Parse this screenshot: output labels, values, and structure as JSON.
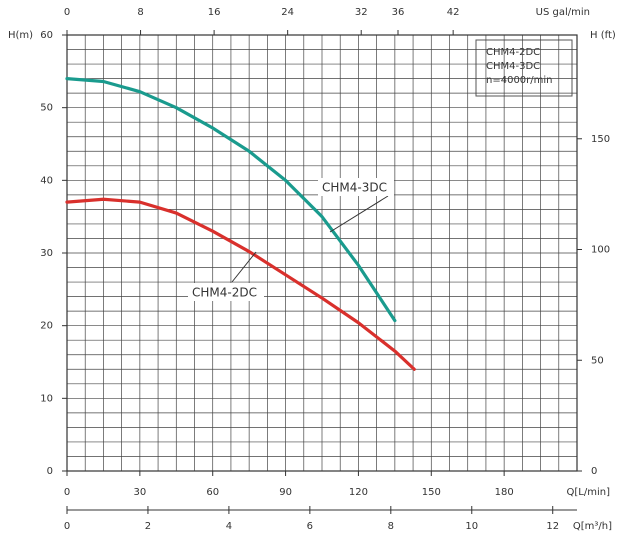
{
  "chart_data": {
    "type": "line",
    "y_label": "H(m)",
    "y2_label": "H (ft)",
    "x_label": "Q[L/min]",
    "x2_label": "US  gal/min",
    "x3_label": "Q[m³/h]",
    "annotations": [
      "CHM4-2DC",
      "CHM4-3DC",
      "n=4000r/min"
    ],
    "xlim": [
      0,
      210
    ],
    "xticks": [
      0,
      30,
      60,
      90,
      120,
      150,
      180
    ],
    "x2lim": [
      0,
      55.47
    ],
    "x2ticks": [
      0,
      8,
      16,
      24,
      32,
      36,
      42
    ],
    "x3lim": [
      0,
      12.6
    ],
    "x3ticks": [
      0,
      2,
      4,
      6,
      8,
      10,
      12
    ],
    "ylim": [
      0,
      60
    ],
    "yticks": [
      0,
      10,
      20,
      30,
      40,
      50,
      60
    ],
    "y2lim": [
      0,
      196.85
    ],
    "y2ticks": [
      0,
      50,
      100,
      150
    ],
    "grid": true,
    "x_grid": [
      0,
      7.5,
      15,
      22.5,
      30,
      37.5,
      45,
      52.5,
      60,
      67.5,
      75,
      82.5,
      90,
      97.5,
      105,
      112.5,
      120,
      127.5,
      135,
      142.5,
      150,
      157.5,
      165,
      172.5,
      180,
      187.5,
      195,
      202.5,
      210
    ],
    "y_grid": [
      0,
      2,
      4,
      6,
      8,
      10,
      12,
      14,
      16,
      18,
      20,
      22,
      24,
      26,
      28,
      30,
      32,
      34,
      36,
      38,
      40,
      42,
      44,
      46,
      48,
      50,
      52,
      54,
      56,
      58,
      60
    ],
    "series": [
      {
        "name": "CHM4-3DC",
        "color": "#1a9b8e",
        "x": [
          0,
          15,
          30,
          45,
          60,
          75,
          90,
          105,
          120,
          135
        ],
        "values": [
          54,
          53.6,
          52.2,
          50,
          47.2,
          44,
          40,
          35,
          28.3,
          20.7
        ]
      },
      {
        "name": "CHM4-2DC",
        "color": "#d9302c",
        "x": [
          0,
          15,
          30,
          45,
          60,
          75,
          90,
          105,
          120,
          135,
          143
        ],
        "values": [
          37,
          37.4,
          37,
          35.5,
          33,
          30.2,
          27,
          23.8,
          20.4,
          16.5,
          14
        ]
      }
    ]
  }
}
